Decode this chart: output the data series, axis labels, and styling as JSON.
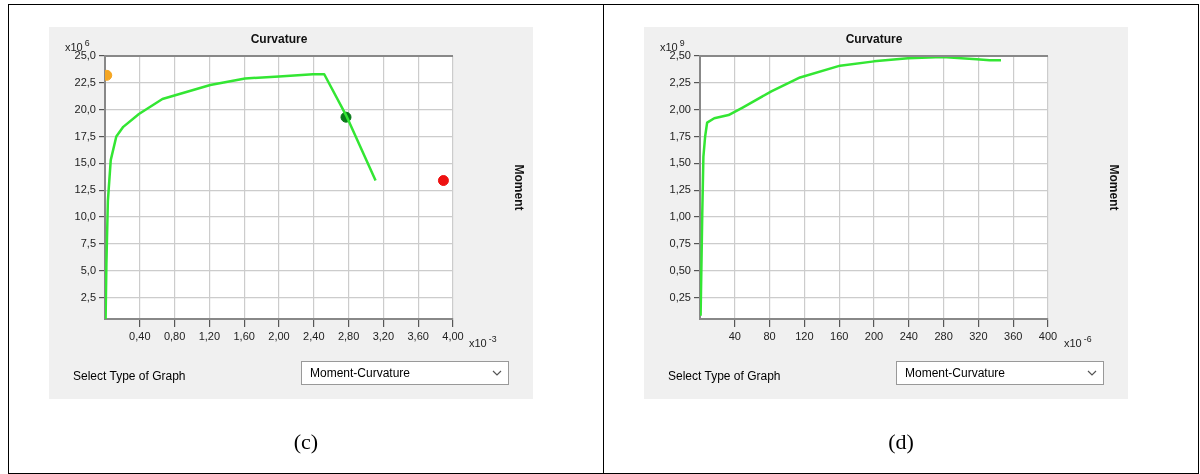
{
  "chart_data": [
    {
      "type": "line",
      "xlabel": "Curvature",
      "ylabel": "Moment",
      "grid": true,
      "xlim": [
        0,
        4.0
      ],
      "xticks": [
        {
          "value": 0.4,
          "label": "0,40"
        },
        {
          "value": 0.8,
          "label": "0,80"
        },
        {
          "value": 1.2,
          "label": "1,20"
        },
        {
          "value": 1.6,
          "label": "1,60"
        },
        {
          "value": 2.0,
          "label": "2,00"
        },
        {
          "value": 2.4,
          "label": "2,40"
        },
        {
          "value": 2.8,
          "label": "2,80"
        },
        {
          "value": 3.2,
          "label": "3,20"
        },
        {
          "value": 3.6,
          "label": "3,60"
        },
        {
          "value": 4.0,
          "label": "4,00"
        }
      ],
      "ylim": [
        0.5,
        25
      ],
      "yticks": [
        {
          "value": 2.5,
          "label": "2,5"
        },
        {
          "value": 5,
          "label": "5,0"
        },
        {
          "value": 7.5,
          "label": "7,5"
        },
        {
          "value": 10,
          "label": "10,0"
        },
        {
          "value": 12.5,
          "label": "12,5"
        },
        {
          "value": 15,
          "label": "15,0"
        },
        {
          "value": 17.5,
          "label": "17,5"
        },
        {
          "value": 20,
          "label": "20,0"
        },
        {
          "value": 22.5,
          "label": "22,5"
        },
        {
          "value": 25,
          "label": "25,0"
        }
      ],
      "series": [
        {
          "color": "#33e633",
          "x": [
            0.007,
            0.016,
            0.033,
            0.066,
            0.13,
            0.21,
            0.39,
            0.66,
            1.21,
            1.61,
            2.0,
            2.39,
            2.52,
            2.77,
            3.11
          ],
          "values": [
            0.5,
            5.6,
            11.5,
            15.3,
            17.5,
            18.4,
            19.6,
            21.0,
            22.3,
            22.9,
            23.1,
            23.3,
            23.3,
            19.5,
            13.4
          ]
        },
        {
          "type": "scatter",
          "x": [
            0.02,
            2.77,
            3.89
          ],
          "values": [
            23.2,
            19.3,
            13.4
          ],
          "colors": [
            "#f5a623",
            "#0a7a1a",
            "#ee1111"
          ]
        }
      ],
      "annotations": [
        "x10$^{6}$",
        "x10$^{-3}$",
        "Select Type of Graph",
        "Moment-Curvature",
        "(c)"
      ]
    },
    {
      "type": "line",
      "xlabel": "Curvature",
      "ylabel": "Moment",
      "grid": true,
      "xlim": [
        0,
        400
      ],
      "xticks": [
        40,
        80,
        120,
        160,
        200,
        240,
        280,
        320,
        360,
        400
      ],
      "ylim": [
        0.05,
        2.5
      ],
      "yticks": [
        {
          "value": 0.25,
          "label": "0,25"
        },
        {
          "value": 0.5,
          "label": "0,50"
        },
        {
          "value": 0.75,
          "label": "0,75"
        },
        {
          "value": 1.0,
          "label": "1,00"
        },
        {
          "value": 1.25,
          "label": "1,25"
        },
        {
          "value": 1.5,
          "label": "1,50"
        },
        {
          "value": 1.75,
          "label": "1,75"
        },
        {
          "value": 2.0,
          "label": "2,00"
        },
        {
          "value": 2.25,
          "label": "2,25"
        },
        {
          "value": 2.5,
          "label": "2,50"
        }
      ],
      "series": [
        {
          "color": "#33e633",
          "x": [
            0.7,
            1.6,
            2.6,
            3.9,
            5.9,
            8.2,
            16.4,
            32.8,
            49,
            82,
            115,
            161,
            200,
            239,
            279,
            318,
            333,
            346
          ],
          "values": [
            0.08,
            0.53,
            1.03,
            1.56,
            1.75,
            1.88,
            1.92,
            1.95,
            2.02,
            2.17,
            2.3,
            2.41,
            2.45,
            2.48,
            2.49,
            2.47,
            2.46,
            2.46
          ]
        }
      ],
      "annotations": [
        "x10$^{9}$",
        "x10$^{-6}$",
        "Select Type of Graph",
        "Moment-Curvature",
        "(d)"
      ]
    }
  ]
}
